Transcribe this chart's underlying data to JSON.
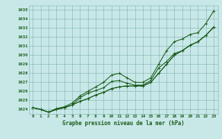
{
  "x": [
    0,
    1,
    2,
    3,
    4,
    5,
    6,
    7,
    8,
    9,
    10,
    11,
    12,
    13,
    14,
    15,
    16,
    17,
    18,
    19,
    20,
    21,
    22,
    23
  ],
  "line1": [
    1024.2,
    1024.0,
    1023.7,
    1024.0,
    1024.2,
    1024.5,
    1024.9,
    1025.2,
    1025.6,
    1025.9,
    1026.3,
    1026.5,
    1026.6,
    1026.6,
    1026.6,
    1027.0,
    1028.0,
    1029.0,
    1030.0,
    1030.5,
    1031.1,
    1031.5,
    1032.2,
    1033.1
  ],
  "line2": [
    1024.2,
    1024.0,
    1023.7,
    1024.0,
    1024.2,
    1024.5,
    1024.9,
    1025.2,
    1025.6,
    1025.9,
    1026.3,
    1026.5,
    1026.6,
    1026.6,
    1026.6,
    1027.0,
    1028.0,
    1029.0,
    1030.0,
    1030.5,
    1031.1,
    1031.5,
    1032.2,
    1033.1
  ],
  "line3": [
    1024.2,
    1024.0,
    1023.7,
    1024.0,
    1024.2,
    1024.5,
    1025.3,
    1025.8,
    1026.1,
    1026.4,
    1027.1,
    1027.2,
    1026.9,
    1026.7,
    1026.7,
    1027.2,
    1028.6,
    1029.3,
    1030.2,
    1030.5,
    1031.1,
    1031.5,
    1032.2,
    1033.1
  ],
  "line4": [
    1024.2,
    1024.0,
    1023.7,
    1024.1,
    1024.3,
    1024.7,
    1025.5,
    1026.0,
    1026.5,
    1027.0,
    1027.8,
    1028.0,
    1027.5,
    1027.0,
    1027.0,
    1027.5,
    1029.0,
    1030.5,
    1031.5,
    1031.8,
    1032.3,
    1032.5,
    1033.5,
    1034.9
  ],
  "ylim": [
    1023.5,
    1035.5
  ],
  "xlim": [
    -0.5,
    23.5
  ],
  "yticks": [
    1024,
    1025,
    1026,
    1027,
    1028,
    1029,
    1030,
    1031,
    1032,
    1033,
    1034,
    1035
  ],
  "xticks": [
    0,
    1,
    2,
    3,
    4,
    5,
    6,
    7,
    8,
    9,
    10,
    11,
    12,
    13,
    14,
    15,
    16,
    17,
    18,
    19,
    20,
    21,
    22,
    23
  ],
  "xlabel": "Graphe pression niveau de la mer (hPa)",
  "line_color": "#1a5c1a",
  "bg_color": "#c8e8e8",
  "grid_color": "#8ab8b8",
  "text_color": "#1a5c1a",
  "marker": "+",
  "markersize": 3,
  "linewidth": 0.8,
  "figwidth": 3.2,
  "figheight": 2.0,
  "dpi": 100
}
